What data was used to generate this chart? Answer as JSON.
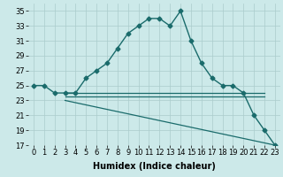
{
  "xlabel": "Humidex (Indice chaleur)",
  "background_color": "#cce9e9",
  "grid_color": "#aacccc",
  "line_color": "#1a6b6b",
  "xlim": [
    -0.5,
    23.5
  ],
  "ylim": [
    17,
    36
  ],
  "xticks": [
    0,
    1,
    2,
    3,
    4,
    5,
    6,
    7,
    8,
    9,
    10,
    11,
    12,
    13,
    14,
    15,
    16,
    17,
    18,
    19,
    20,
    21,
    22,
    23
  ],
  "yticks": [
    17,
    19,
    21,
    23,
    25,
    27,
    29,
    31,
    33,
    35
  ],
  "line1_x": [
    0,
    1,
    2,
    3,
    4,
    5,
    6,
    7,
    8,
    9,
    10,
    11,
    12,
    13,
    14,
    15,
    16,
    17,
    18,
    19,
    20,
    21,
    22,
    23
  ],
  "line1_y": [
    25,
    25,
    24,
    24,
    24,
    26,
    27,
    28,
    30,
    32,
    33,
    34,
    34,
    33,
    35,
    31,
    28,
    26,
    25,
    25,
    24,
    21,
    19,
    17
  ],
  "line2_x": [
    3,
    4,
    5,
    6,
    7,
    8,
    9,
    10,
    11,
    12,
    13,
    14,
    15,
    16,
    17,
    18,
    19,
    20,
    21,
    22
  ],
  "line2_y": [
    24,
    24,
    24,
    24,
    24,
    24,
    24,
    24,
    24,
    24,
    24,
    24,
    24,
    24,
    24,
    24,
    24,
    24,
    24,
    24
  ],
  "line3_x": [
    3,
    4,
    5,
    6,
    7,
    8,
    9,
    10,
    11,
    12,
    13,
    14,
    15,
    16,
    17,
    18,
    19,
    20,
    21,
    22
  ],
  "line3_y": [
    23.5,
    23.5,
    23.5,
    23.5,
    23.5,
    23.5,
    23.5,
    23.5,
    23.5,
    23.5,
    23.5,
    23.5,
    23.5,
    23.5,
    23.5,
    23.5,
    23.5,
    23.5,
    23.5,
    23.5
  ],
  "line4_x": [
    3,
    23
  ],
  "line4_y": [
    23,
    17
  ],
  "font_size_xlabel": 7,
  "font_size_ticks": 6
}
